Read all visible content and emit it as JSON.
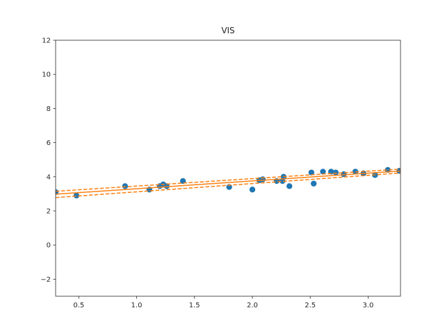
{
  "chart_data": {
    "type": "scatter",
    "title": "VIS",
    "xlabel": "",
    "ylabel": "",
    "xlim": [
      0.3,
      3.28
    ],
    "ylim": [
      -3,
      12
    ],
    "xticks": [
      0.5,
      1.0,
      1.5,
      2.0,
      2.5,
      3.0
    ],
    "xtick_labels": [
      "0.5",
      "1.0",
      "1.5",
      "2.0",
      "2.5",
      "3.0"
    ],
    "yticks": [
      -2,
      0,
      2,
      4,
      6,
      8,
      10,
      12
    ],
    "ytick_labels": [
      "−2",
      "0",
      "2",
      "4",
      "6",
      "8",
      "10",
      "12"
    ],
    "grid": false,
    "points": {
      "color": "#1f77b4",
      "x": [
        0.3,
        0.48,
        0.9,
        1.11,
        1.2,
        1.23,
        1.26,
        1.4,
        1.8,
        2.0,
        2.06,
        2.09,
        2.21,
        2.26,
        2.27,
        2.32,
        2.51,
        2.53,
        2.61,
        2.68,
        2.72,
        2.79,
        2.89,
        2.96,
        3.06,
        3.17,
        3.27
      ],
      "y": [
        3.1,
        2.9,
        3.45,
        3.25,
        3.45,
        3.55,
        3.45,
        3.75,
        3.4,
        3.25,
        3.8,
        3.85,
        3.75,
        3.75,
        4.0,
        3.45,
        4.25,
        3.6,
        4.3,
        4.3,
        4.25,
        4.15,
        4.3,
        4.2,
        4.1,
        4.4,
        4.35
      ]
    },
    "fit": {
      "color": "#ff7f0e",
      "x": [
        0.3,
        3.28
      ],
      "center": [
        2.98,
        4.34
      ],
      "upper": [
        3.15,
        4.45
      ],
      "lower": [
        2.78,
        4.22
      ]
    }
  }
}
